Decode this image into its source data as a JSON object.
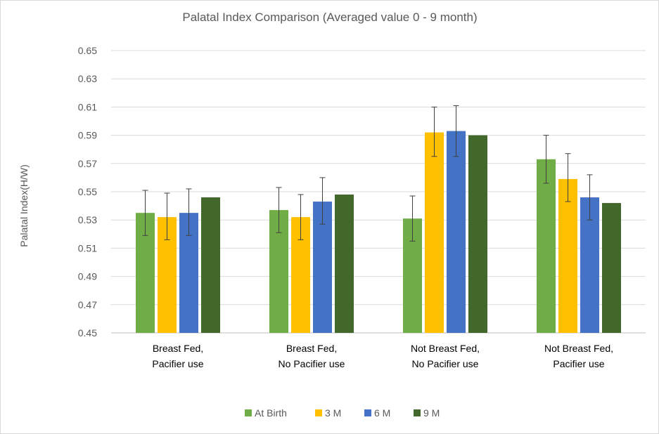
{
  "chart_data": {
    "type": "bar",
    "title": "Palatal Index Comparison (Averaged value 0 - 9 month)",
    "ylabel": "Palatal Index(H/W)",
    "xlabel": "",
    "ylim": [
      0.45,
      0.65
    ],
    "yticks": [
      "0.45",
      "0.47",
      "0.49",
      "0.51",
      "0.53",
      "0.55",
      "0.57",
      "0.59",
      "0.61",
      "0.63",
      "0.65"
    ],
    "grid": true,
    "legend_position": "bottom",
    "categories": [
      [
        "Breast Fed,",
        "Pacifier use"
      ],
      [
        "Breast Fed,",
        "No Pacifier use"
      ],
      [
        "Not Breast Fed,",
        "No Pacifier use"
      ],
      [
        "Not Breast Fed,",
        "Pacifier use"
      ]
    ],
    "series": [
      {
        "name": "At Birth",
        "color": "#70ad47",
        "values": [
          0.535,
          0.537,
          0.531,
          0.573
        ],
        "err_low": [
          0.519,
          0.521,
          0.515,
          0.556
        ],
        "err_high": [
          0.551,
          0.553,
          0.547,
          0.59
        ]
      },
      {
        "name": "3 M",
        "color": "#ffc000",
        "values": [
          0.532,
          0.532,
          0.592,
          0.559
        ],
        "err_low": [
          0.516,
          0.516,
          0.575,
          0.543
        ],
        "err_high": [
          0.549,
          0.548,
          0.61,
          0.577
        ]
      },
      {
        "name": "6 M",
        "color": "#4472c4",
        "values": [
          0.535,
          0.543,
          0.593,
          0.546
        ],
        "err_low": [
          0.519,
          0.527,
          0.575,
          0.53
        ],
        "err_high": [
          0.552,
          0.56,
          0.611,
          0.562
        ]
      },
      {
        "name": "9 M",
        "color": "#43682b",
        "values": [
          0.546,
          0.548,
          0.59,
          0.542
        ]
      }
    ]
  }
}
